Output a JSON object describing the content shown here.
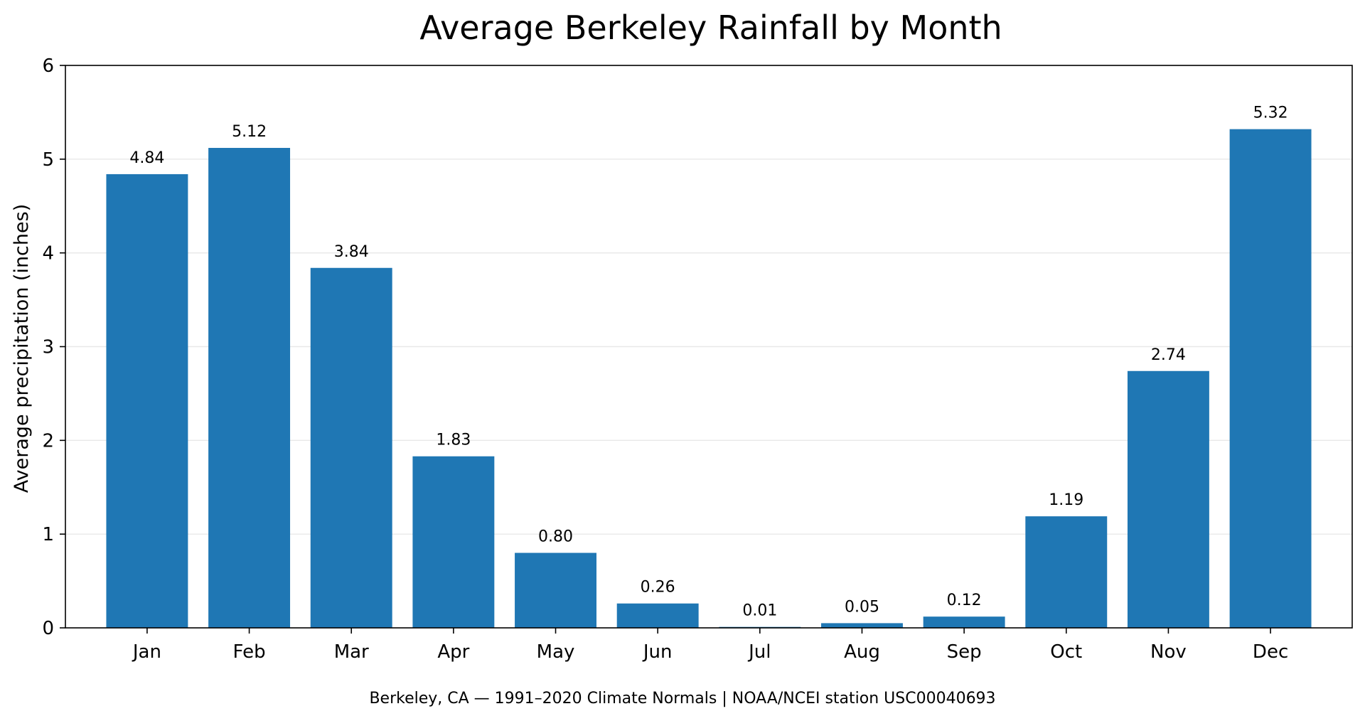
{
  "chart_data": {
    "type": "bar",
    "title": "Average Berkeley Rainfall by Month",
    "ylabel": "Average precipitation (inches)",
    "xlabel": "",
    "categories": [
      "Jan",
      "Feb",
      "Mar",
      "Apr",
      "May",
      "Jun",
      "Jul",
      "Aug",
      "Sep",
      "Oct",
      "Nov",
      "Dec"
    ],
    "values": [
      4.84,
      5.12,
      3.84,
      1.83,
      0.8,
      0.26,
      0.01,
      0.05,
      0.12,
      1.19,
      2.74,
      5.32
    ],
    "value_labels": [
      "4.84",
      "5.12",
      "3.84",
      "1.83",
      "0.80",
      "0.26",
      "0.01",
      "0.05",
      "0.12",
      "1.19",
      "2.74",
      "5.32"
    ],
    "ylim": [
      0,
      6
    ],
    "yticks": [
      0,
      1,
      2,
      3,
      4,
      5,
      6
    ],
    "ytick_labels": [
      "0",
      "1",
      "2",
      "3",
      "4",
      "5",
      "6"
    ],
    "grid": "y",
    "bar_color": "#1f77b4",
    "grid_color": "#e8e8e8",
    "caption": "Berkeley, CA — 1991–2020 Climate Normals | NOAA/NCEI station USC00040693"
  }
}
